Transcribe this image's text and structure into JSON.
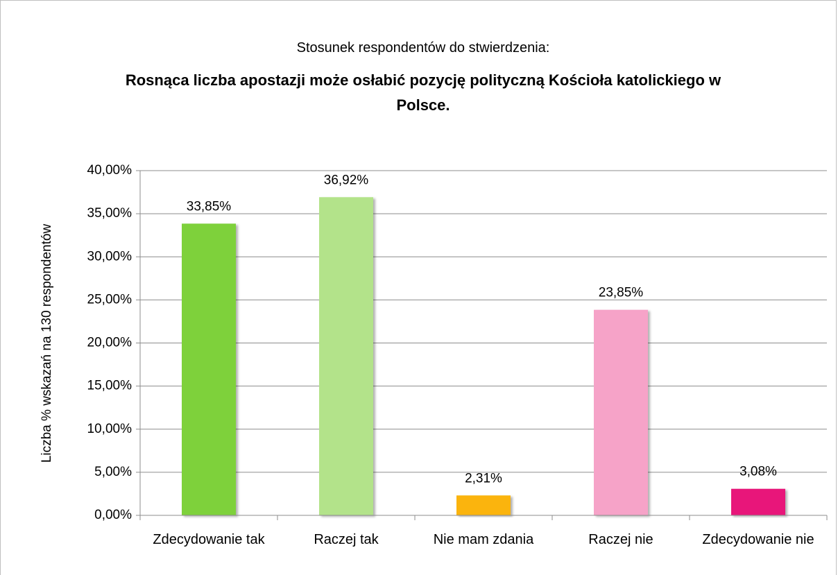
{
  "chart_data": {
    "type": "bar",
    "subtitle": "Stosunek respondentów do stwierdzenia:",
    "title": "Rosnąca liczba apostazji może osłabić pozycję polityczną Kościoła katolickiego w Polsce.",
    "y_label": "Liczba % wskazań na 130 respondentów",
    "categories": [
      "Zdecydowanie tak",
      "Raczej tak",
      "Nie mam zdania",
      "Raczej nie",
      "Zdecydowanie nie"
    ],
    "values": [
      33.85,
      36.92,
      2.31,
      23.85,
      3.08
    ],
    "value_labels": [
      "33,85%",
      "36,92%",
      "2,31%",
      "23,85%",
      "3,08%"
    ],
    "colors": [
      "#7ed13b",
      "#b3e38a",
      "#fbb40f",
      "#f6a3c8",
      "#e8187a"
    ],
    "ylim": [
      0,
      40
    ],
    "yticks": [
      {
        "value": 0,
        "label": "0,00%"
      },
      {
        "value": 5,
        "label": "5,00%"
      },
      {
        "value": 10,
        "label": "10,00%"
      },
      {
        "value": 15,
        "label": "15,00%"
      },
      {
        "value": 20,
        "label": "20,00%"
      },
      {
        "value": 25,
        "label": "25,00%"
      },
      {
        "value": 30,
        "label": "30,00%"
      },
      {
        "value": 35,
        "label": "35,00%"
      },
      {
        "value": 40,
        "label": "40,00%"
      }
    ],
    "grid": true
  }
}
